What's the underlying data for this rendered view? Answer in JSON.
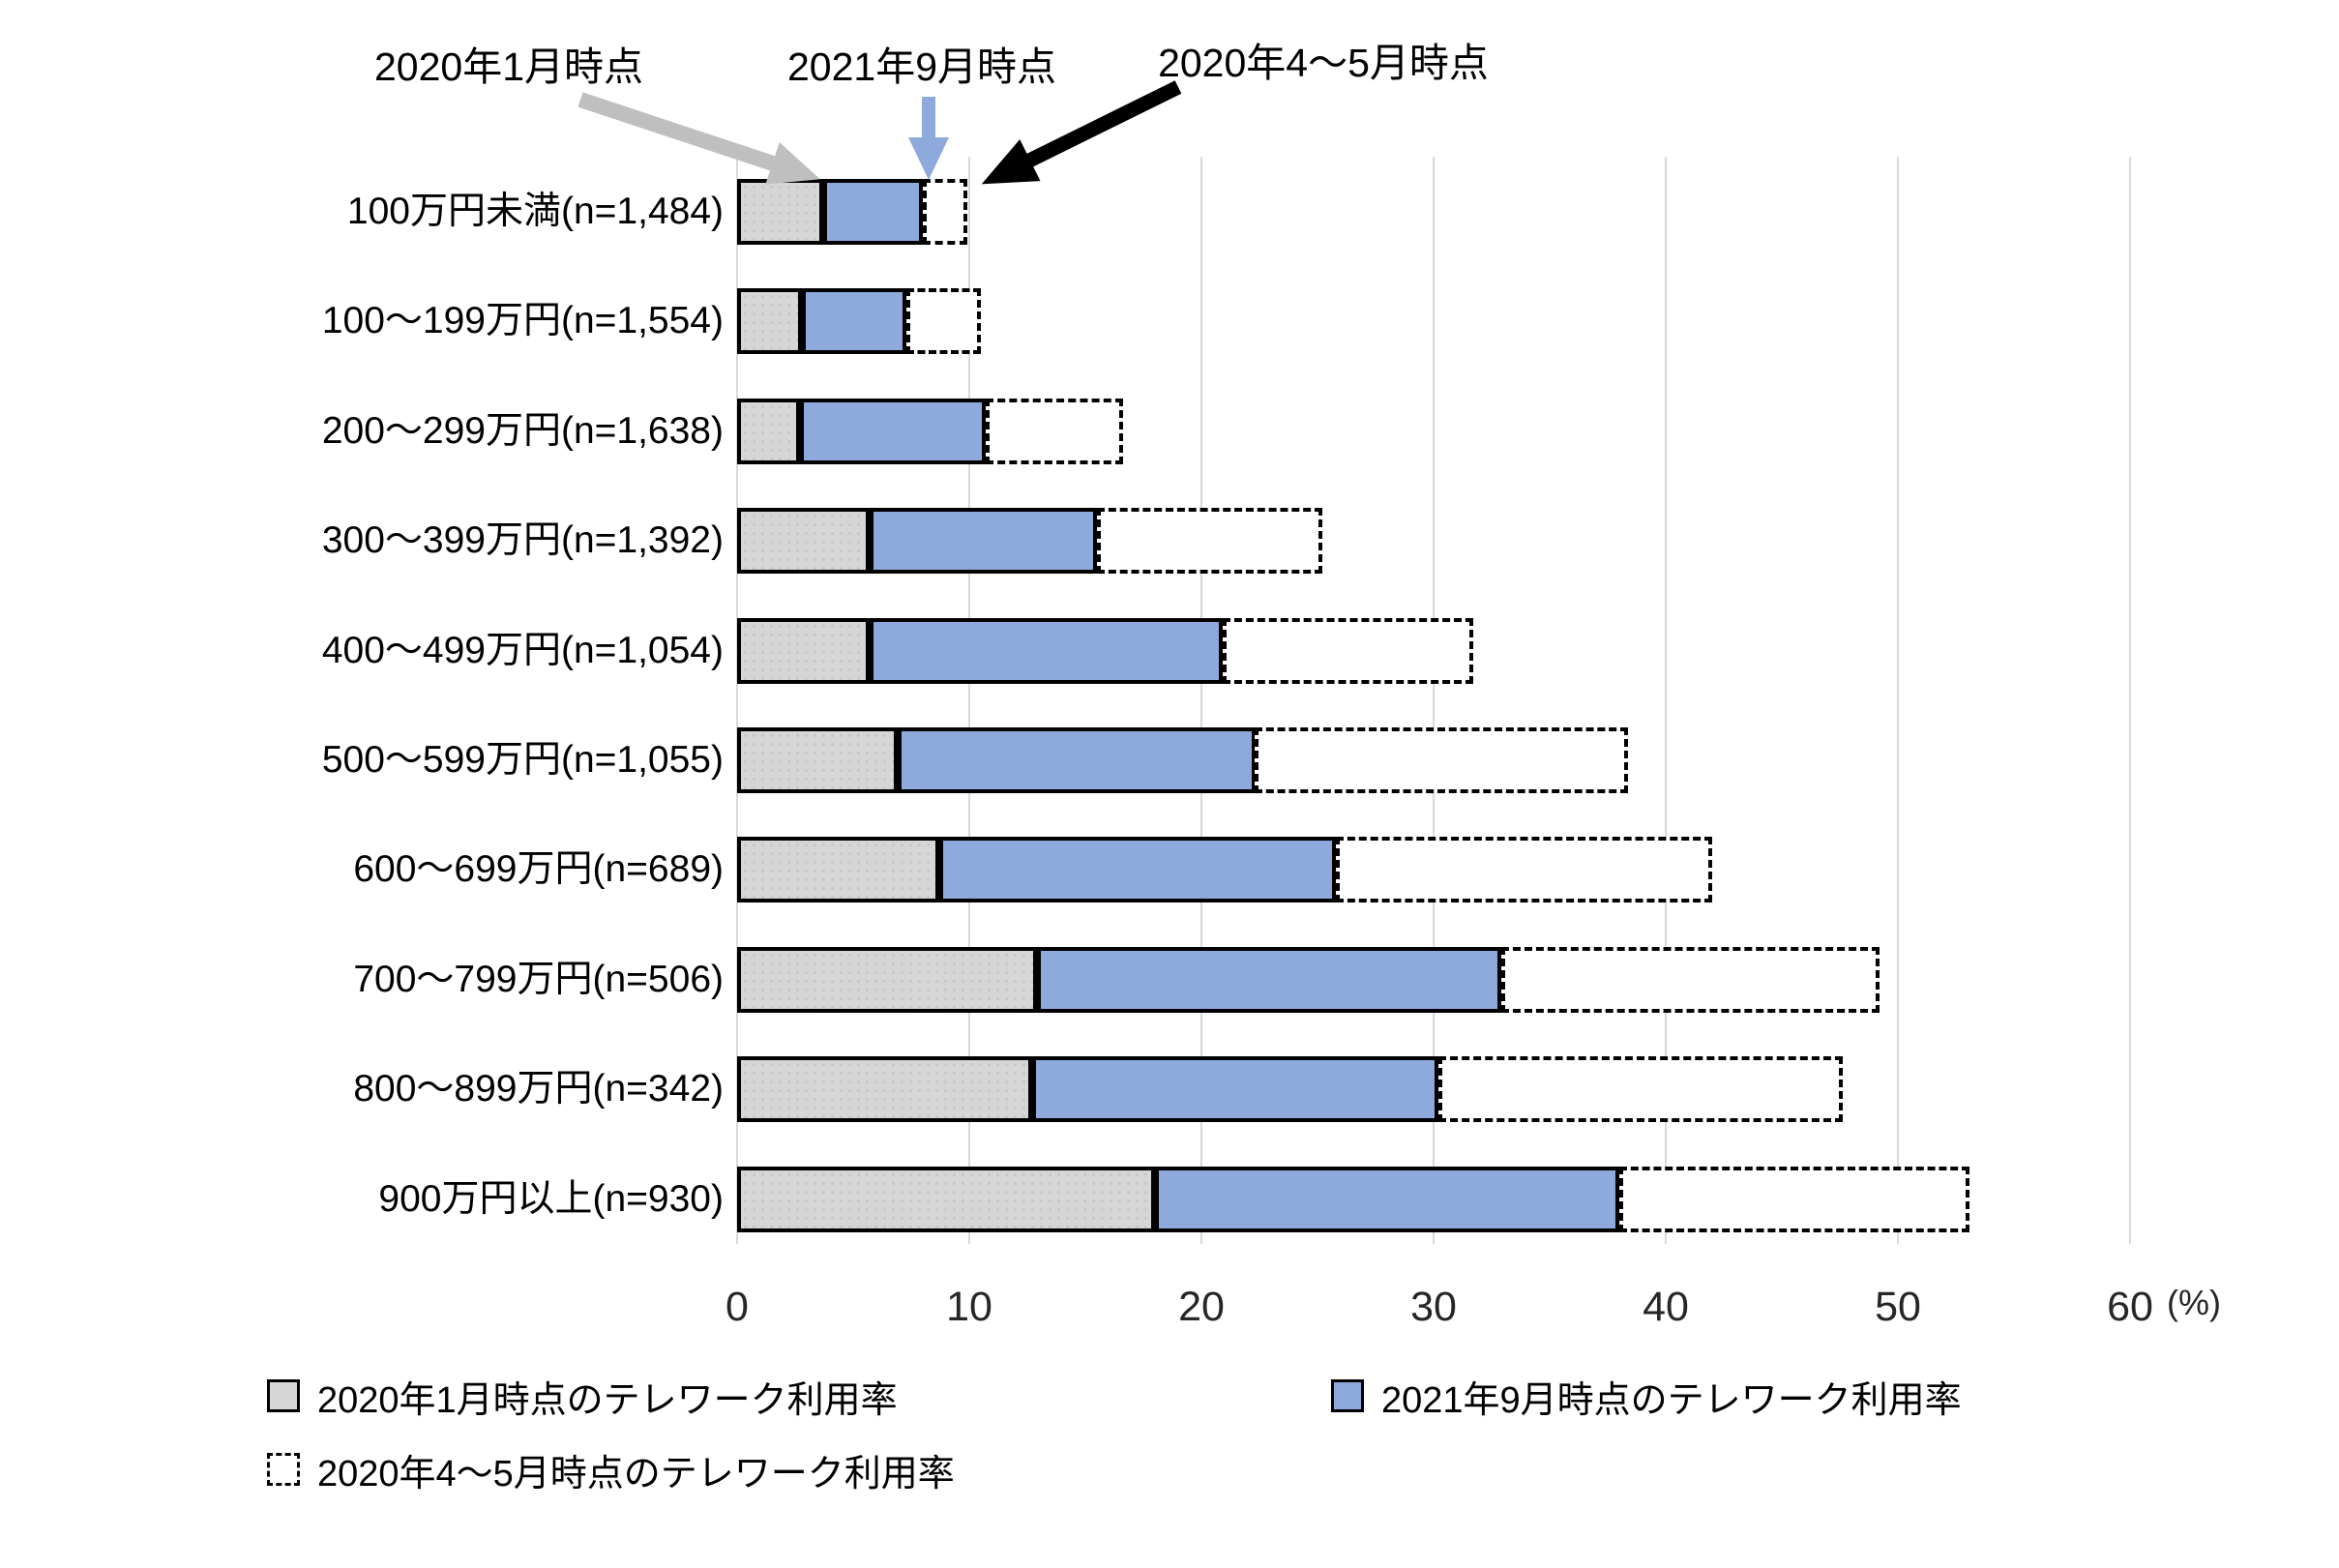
{
  "chart_data": {
    "type": "bar",
    "orientation": "horizontal",
    "title": "",
    "unit_label": "(%)",
    "x_ticks": [
      0,
      10,
      20,
      30,
      40,
      50,
      60
    ],
    "xlim": [
      0,
      60
    ],
    "grid": true,
    "legend_position": "bottom-left",
    "overlay_note": "All three series start at 0; drawn as contiguous segments: gray (Jan 2020), then blue up to Sep 2021 value, then dashed white outline up to Apr-May 2020 value",
    "categories": [
      "100万円未満(n=1,484)",
      "100～199万円(n=1,554)",
      "200～299万円(n=1,638)",
      "300～399万円(n=1,392)",
      "400～499万円(n=1,054)",
      "500～599万円(n=1,055)",
      "600～699万円(n=689)",
      "700～799万円(n=506)",
      "800～899万円(n=342)",
      "900万円以上(n=930)"
    ],
    "series": [
      {
        "name": "2020年1月時点のテレワーク利用率",
        "style": "solid",
        "fill": "#D6D6D6",
        "border": "#000000",
        "values": [
          3.7,
          2.8,
          2.7,
          5.7,
          5.7,
          6.9,
          8.7,
          12.9,
          12.7,
          18.0
        ]
      },
      {
        "name": "2021年9月時点のテレワーク利用率",
        "style": "solid",
        "fill": "#8EA9DB",
        "border": "#000000",
        "values": [
          8.0,
          7.3,
          10.7,
          15.5,
          20.9,
          22.3,
          25.8,
          32.9,
          30.2,
          38.0
        ]
      },
      {
        "name": "2020年4～5月時点のテレワーク利用率",
        "style": "dashed",
        "fill": "#FFFFFF",
        "border": "#000000",
        "values": [
          9.9,
          10.5,
          16.6,
          25.2,
          31.7,
          38.4,
          42.0,
          49.2,
          47.6,
          53.1
        ]
      }
    ]
  },
  "annotations": {
    "items": [
      {
        "label": "2020年1月時点",
        "arrow_color": "#BFBFBF"
      },
      {
        "label": "2021年9月時点",
        "arrow_color": "#8EA9DB"
      },
      {
        "label": "2020年4～5月時点",
        "arrow_color": "#000000"
      }
    ]
  },
  "legend": {
    "items": [
      {
        "label": "2020年1月時点のテレワーク利用率"
      },
      {
        "label": "2021年9月時点のテレワーク利用率"
      },
      {
        "label": "2020年4～5月時点のテレワーク利用率"
      }
    ]
  },
  "colors": {
    "gridline": "#D9D9D9",
    "tick_text": "#262626",
    "text": "#000000"
  }
}
